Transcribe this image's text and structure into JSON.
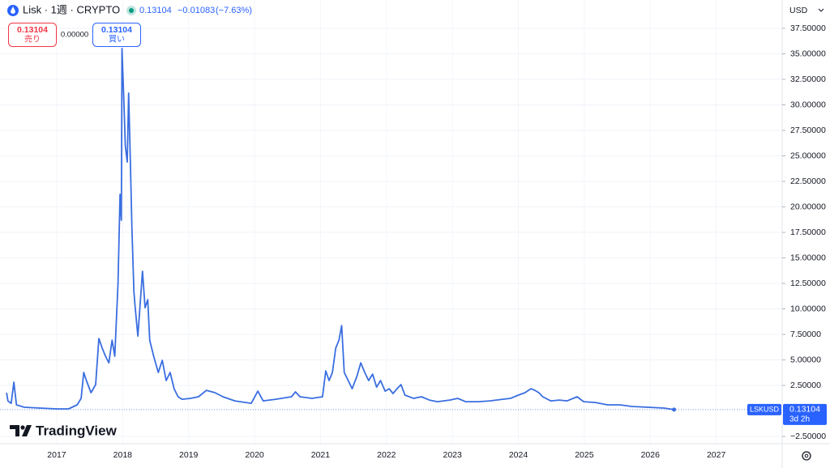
{
  "header": {
    "title": "Lisk · 1週 · CRYPTO",
    "price": "0.13104",
    "change": "−0.01083",
    "change_pct": "(−7.63%)"
  },
  "order_panel": {
    "sell": {
      "price": "0.13104",
      "label": "売り"
    },
    "spread": "0.00000",
    "buy": {
      "price": "0.13104",
      "label": "買い"
    }
  },
  "currency": "USD",
  "logo": "TradingView",
  "price_tag": {
    "symbol": "LSKUSD",
    "price": 0.13104,
    "countdown": "3d 2h"
  },
  "chart_data": {
    "type": "line",
    "color": "#3a6ee0",
    "grid": true,
    "xlim": [
      2016.14,
      2028.0
    ],
    "xticks": [
      2017,
      2018,
      2019,
      2020,
      2021,
      2022,
      2023,
      2024,
      2025,
      2026,
      2027
    ],
    "ylim": [
      -3.21,
      38.53
    ],
    "yticks": [
      {
        "value": -2.5,
        "label": "−2.50000"
      },
      {
        "value": 2.5,
        "label": "2.50000"
      },
      {
        "value": 5,
        "label": "5.00000"
      },
      {
        "value": 7.5,
        "label": "7.50000"
      },
      {
        "value": 10,
        "label": "10.00000"
      },
      {
        "value": 12.5,
        "label": "12.50000"
      },
      {
        "value": 15,
        "label": "15.00000"
      },
      {
        "value": 17.5,
        "label": "17.50000"
      },
      {
        "value": 20,
        "label": "20.00000"
      },
      {
        "value": 22.5,
        "label": "22.50000"
      },
      {
        "value": 25,
        "label": "25.00000"
      },
      {
        "value": 27.5,
        "label": "27.50000"
      },
      {
        "value": 30,
        "label": "30.00000"
      },
      {
        "value": 32.5,
        "label": "32.50000"
      },
      {
        "value": 35,
        "label": "35.00000"
      },
      {
        "value": 37.5,
        "label": "37.50000"
      }
    ],
    "x": [
      2016.24,
      2016.26,
      2016.31,
      2016.35,
      2016.39,
      2016.51,
      2016.75,
      2017.0,
      2017.18,
      2017.31,
      2017.37,
      2017.41,
      2017.45,
      2017.52,
      2017.59,
      2017.64,
      2017.69,
      2017.74,
      2017.79,
      2017.84,
      2017.88,
      2017.93,
      2017.96,
      2017.98,
      2017.99,
      2018.02,
      2018.04,
      2018.07,
      2018.09,
      2018.12,
      2018.14,
      2018.17,
      2018.19,
      2018.23,
      2018.27,
      2018.3,
      2018.34,
      2018.38,
      2018.41,
      2018.47,
      2018.54,
      2018.6,
      2018.66,
      2018.72,
      2018.78,
      2018.84,
      2018.9,
      2019.03,
      2019.15,
      2019.27,
      2019.4,
      2019.52,
      2019.7,
      2019.95,
      2020.05,
      2020.13,
      2020.32,
      2020.56,
      2020.62,
      2020.69,
      2020.87,
      2021.03,
      2021.08,
      2021.13,
      2021.18,
      2021.23,
      2021.28,
      2021.32,
      2021.36,
      2021.42,
      2021.48,
      2021.55,
      2021.61,
      2021.67,
      2021.73,
      2021.79,
      2021.85,
      2021.91,
      2021.98,
      2022.04,
      2022.1,
      2022.16,
      2022.22,
      2022.28,
      2022.41,
      2022.53,
      2022.65,
      2022.77,
      2022.96,
      2023.08,
      2023.2,
      2023.39,
      2023.57,
      2023.76,
      2023.88,
      2024.0,
      2024.1,
      2024.19,
      2024.25,
      2024.31,
      2024.37,
      2024.49,
      2024.62,
      2024.74,
      2024.89,
      2024.99,
      2025.17,
      2025.35,
      2025.54,
      2025.72,
      2025.97,
      2026.21,
      2026.36
    ],
    "values": [
      1.79,
      0.99,
      0.75,
      2.82,
      0.6,
      0.36,
      0.28,
      0.2,
      0.2,
      0.6,
      1.23,
      3.77,
      2.98,
      1.79,
      2.58,
      7.1,
      6.15,
      5.36,
      4.72,
      6.94,
      5.36,
      12.5,
      21.23,
      18.69,
      35.52,
      29.96,
      25.99,
      24.4,
      31.15,
      23.61,
      18.06,
      11.71,
      10.12,
      7.34,
      10.91,
      13.69,
      10.12,
      10.91,
      6.94,
      5.36,
      3.77,
      4.96,
      2.98,
      3.77,
      2.18,
      1.39,
      1.15,
      1.23,
      1.39,
      2.02,
      1.79,
      1.39,
      0.99,
      0.75,
      1.94,
      0.99,
      1.15,
      1.39,
      1.87,
      1.39,
      1.23,
      1.39,
      3.93,
      2.98,
      3.77,
      6.15,
      6.94,
      8.37,
      3.77,
      2.98,
      2.18,
      3.37,
      4.72,
      3.77,
      2.98,
      3.61,
      2.34,
      2.98,
      1.94,
      2.18,
      1.71,
      2.18,
      2.58,
      1.55,
      1.23,
      1.39,
      1.07,
      0.91,
      1.07,
      1.23,
      0.91,
      0.91,
      0.99,
      1.15,
      1.23,
      1.55,
      1.79,
      2.18,
      2.02,
      1.79,
      1.39,
      0.99,
      1.07,
      0.99,
      1.39,
      0.91,
      0.83,
      0.6,
      0.6,
      0.44,
      0.36,
      0.28,
      0.13104
    ]
  }
}
